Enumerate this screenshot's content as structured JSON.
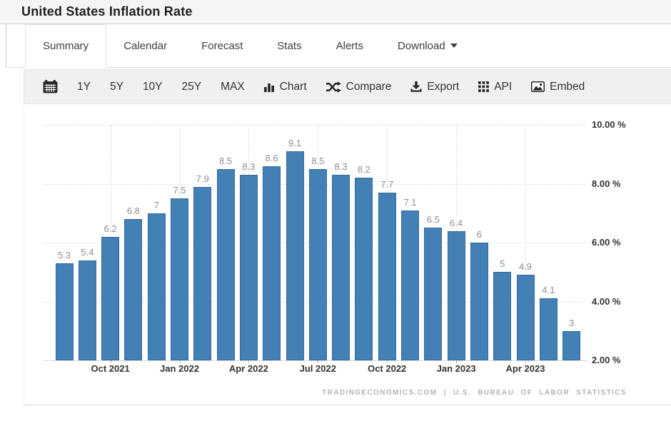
{
  "header": {
    "title": "United States Inflation Rate"
  },
  "tabs": [
    {
      "label": "Summary",
      "active": true
    },
    {
      "label": "Calendar",
      "active": false
    },
    {
      "label": "Forecast",
      "active": false
    },
    {
      "label": "Stats",
      "active": false
    },
    {
      "label": "Alerts",
      "active": false
    },
    {
      "label": "Download",
      "active": false,
      "caret_icon": "caret-down-icon"
    }
  ],
  "toolbar": {
    "calendar_icon": "calendar-icon",
    "ranges": [
      "1Y",
      "5Y",
      "10Y",
      "25Y",
      "MAX"
    ],
    "actions": [
      {
        "label": "Chart",
        "icon": "bar-chart-icon"
      },
      {
        "label": "Compare",
        "icon": "shuffle-icon"
      },
      {
        "label": "Export",
        "icon": "download-icon"
      },
      {
        "label": "API",
        "icon": "grid-icon"
      },
      {
        "label": "Embed",
        "icon": "image-icon"
      }
    ]
  },
  "chart_data": {
    "type": "bar",
    "title": "United States Inflation Rate",
    "values": [
      5.3,
      5.4,
      6.2,
      6.8,
      7,
      7.5,
      7.9,
      8.5,
      8.3,
      8.6,
      9.1,
      8.5,
      8.3,
      8.2,
      7.7,
      7.1,
      6.5,
      6.4,
      6,
      5,
      4.9,
      4.1,
      3
    ],
    "x_ticks": [
      {
        "label": "Oct 2021",
        "bar_index": 2
      },
      {
        "label": "Jan 2022",
        "bar_index": 5
      },
      {
        "label": "Apr 2022",
        "bar_index": 8
      },
      {
        "label": "Jul 2022",
        "bar_index": 11
      },
      {
        "label": "Oct 2022",
        "bar_index": 14
      },
      {
        "label": "Jan 2023",
        "bar_index": 17
      },
      {
        "label": "Apr 2023",
        "bar_index": 20
      }
    ],
    "y_ticks": [
      {
        "value": 10,
        "label": "10.00 %"
      },
      {
        "value": 8,
        "label": "8.00 %"
      },
      {
        "value": 6,
        "label": "6.00 %"
      },
      {
        "value": 4,
        "label": "4.00 %"
      },
      {
        "value": 2,
        "label": "2.00 %"
      }
    ],
    "ylim": [
      2,
      10
    ],
    "grid": true,
    "legend": "none",
    "bar_color": "#4380b5",
    "bar_border_color": "#35699c",
    "value_label_color": "#8e8e8e",
    "tick_label_color": "#333333",
    "grid_color": "#d9d9d9",
    "axis_color": "#b5b5b5"
  },
  "footer": {
    "credit": "TRADINGECONOMICS.COM | U.S. BUREAU OF LABOR STATISTICS"
  }
}
